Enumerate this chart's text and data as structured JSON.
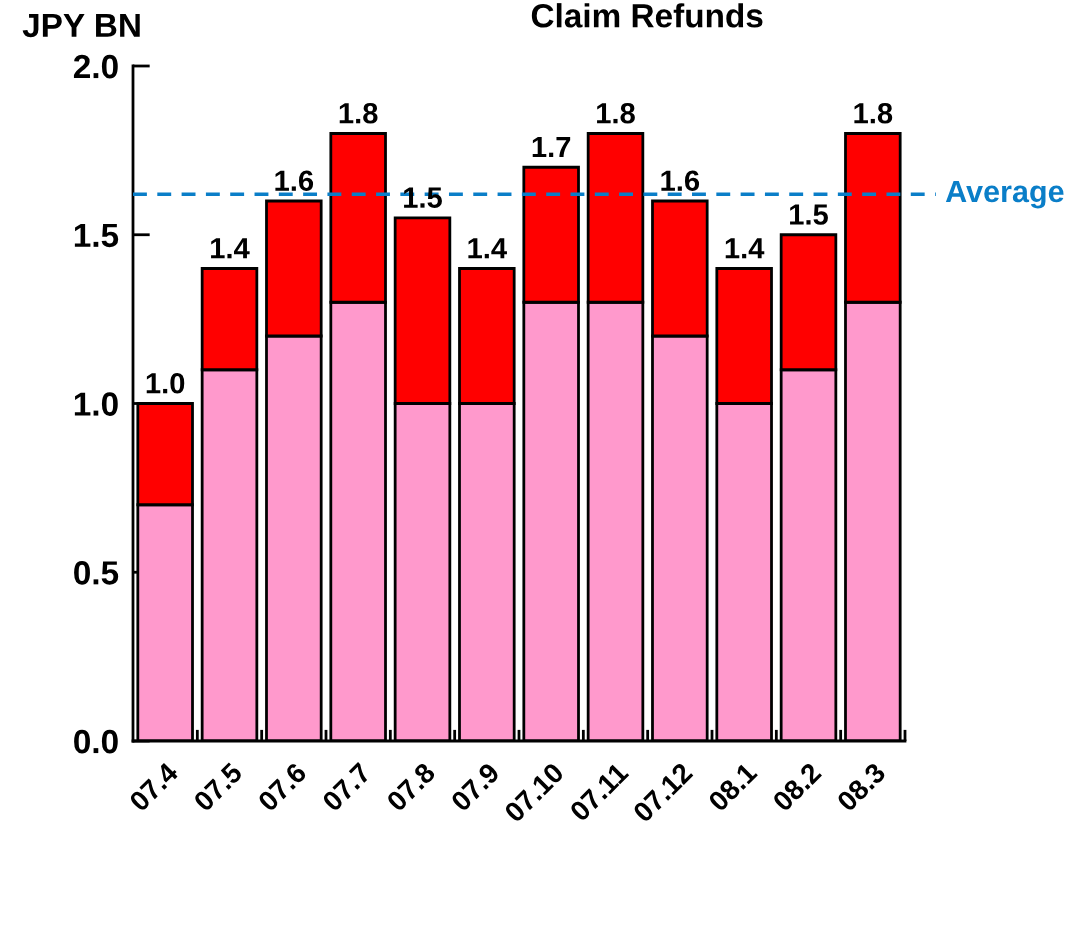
{
  "chart_data": {
    "type": "bar",
    "title": "Claim Refunds",
    "ylabel": "JPY BN",
    "categories": [
      "07.4",
      "07.5",
      "07.6",
      "07.7",
      "07.8",
      "07.9",
      "07.10",
      "07.11",
      "07.12",
      "08.1",
      "08.2",
      "08.3"
    ],
    "stacked": true,
    "series": [
      {
        "color": "#ff99cc",
        "values": [
          0.7,
          1.1,
          1.2,
          1.3,
          1.0,
          1.0,
          1.3,
          1.3,
          1.2,
          1.0,
          1.1,
          1.3
        ]
      },
      {
        "color": "#ff0000",
        "values": [
          0.3,
          0.3,
          0.4,
          0.5,
          0.55,
          0.4,
          0.4,
          0.5,
          0.4,
          0.4,
          0.4,
          0.5
        ]
      }
    ],
    "totals": [
      "1.0",
      "1.4",
      "1.6",
      "1.8",
      "1.5",
      "1.4",
      "1.7",
      "1.8",
      "1.6",
      "1.4",
      "1.5",
      "1.8"
    ],
    "ylim": [
      0,
      2.0
    ],
    "yticks": [
      {
        "value": 0,
        "label": "0.0"
      },
      {
        "value": 0.5,
        "label": "0.5"
      },
      {
        "value": 1.0,
        "label": "1.0"
      },
      {
        "value": 1.5,
        "label": "1.5"
      },
      {
        "value": 2.0,
        "label": "2.0"
      }
    ],
    "ref_lines": [
      {
        "axis": "y",
        "value": 1.62,
        "label": "Average",
        "color": "#0a7ec8",
        "line_style": "dashed"
      }
    ]
  }
}
